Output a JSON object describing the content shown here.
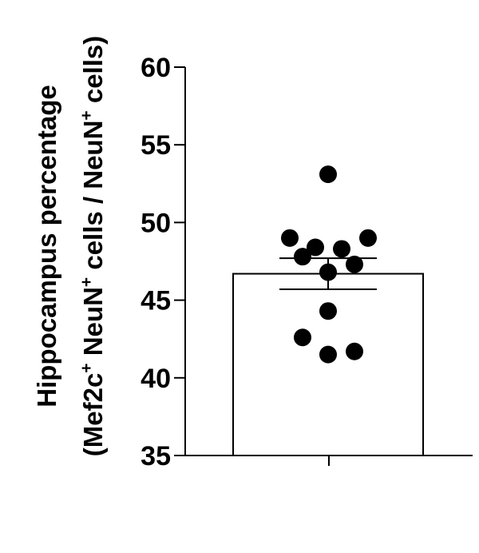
{
  "chart_data": {
    "type": "bar",
    "categories": [
      ""
    ],
    "values": [
      46.7
    ],
    "error": [
      1.0
    ],
    "points": [
      53.1,
      49.0,
      48.4,
      48.3,
      49.0,
      47.8,
      47.3,
      46.8,
      44.3,
      42.6,
      41.5,
      41.7
    ],
    "ylim": [
      35,
      60
    ],
    "yticks": [
      35,
      40,
      45,
      50,
      55,
      60
    ],
    "ytick_labels": [
      "35",
      "40",
      "45",
      "50",
      "55",
      "60"
    ],
    "ylabel_line1": "Hippocampus percentage",
    "ylabel_line2": {
      "open": "(Mef2c",
      "sup1": "+",
      "mid": " NeuN",
      "sup2": "+",
      "mid2": " cells / NeuN",
      "sup3": "+",
      "close": " cells)"
    },
    "grid": false,
    "legend": "none",
    "colors": {
      "bar_fill": "#ffffff",
      "bar_stroke": "#000000",
      "points": "#000000"
    }
  }
}
